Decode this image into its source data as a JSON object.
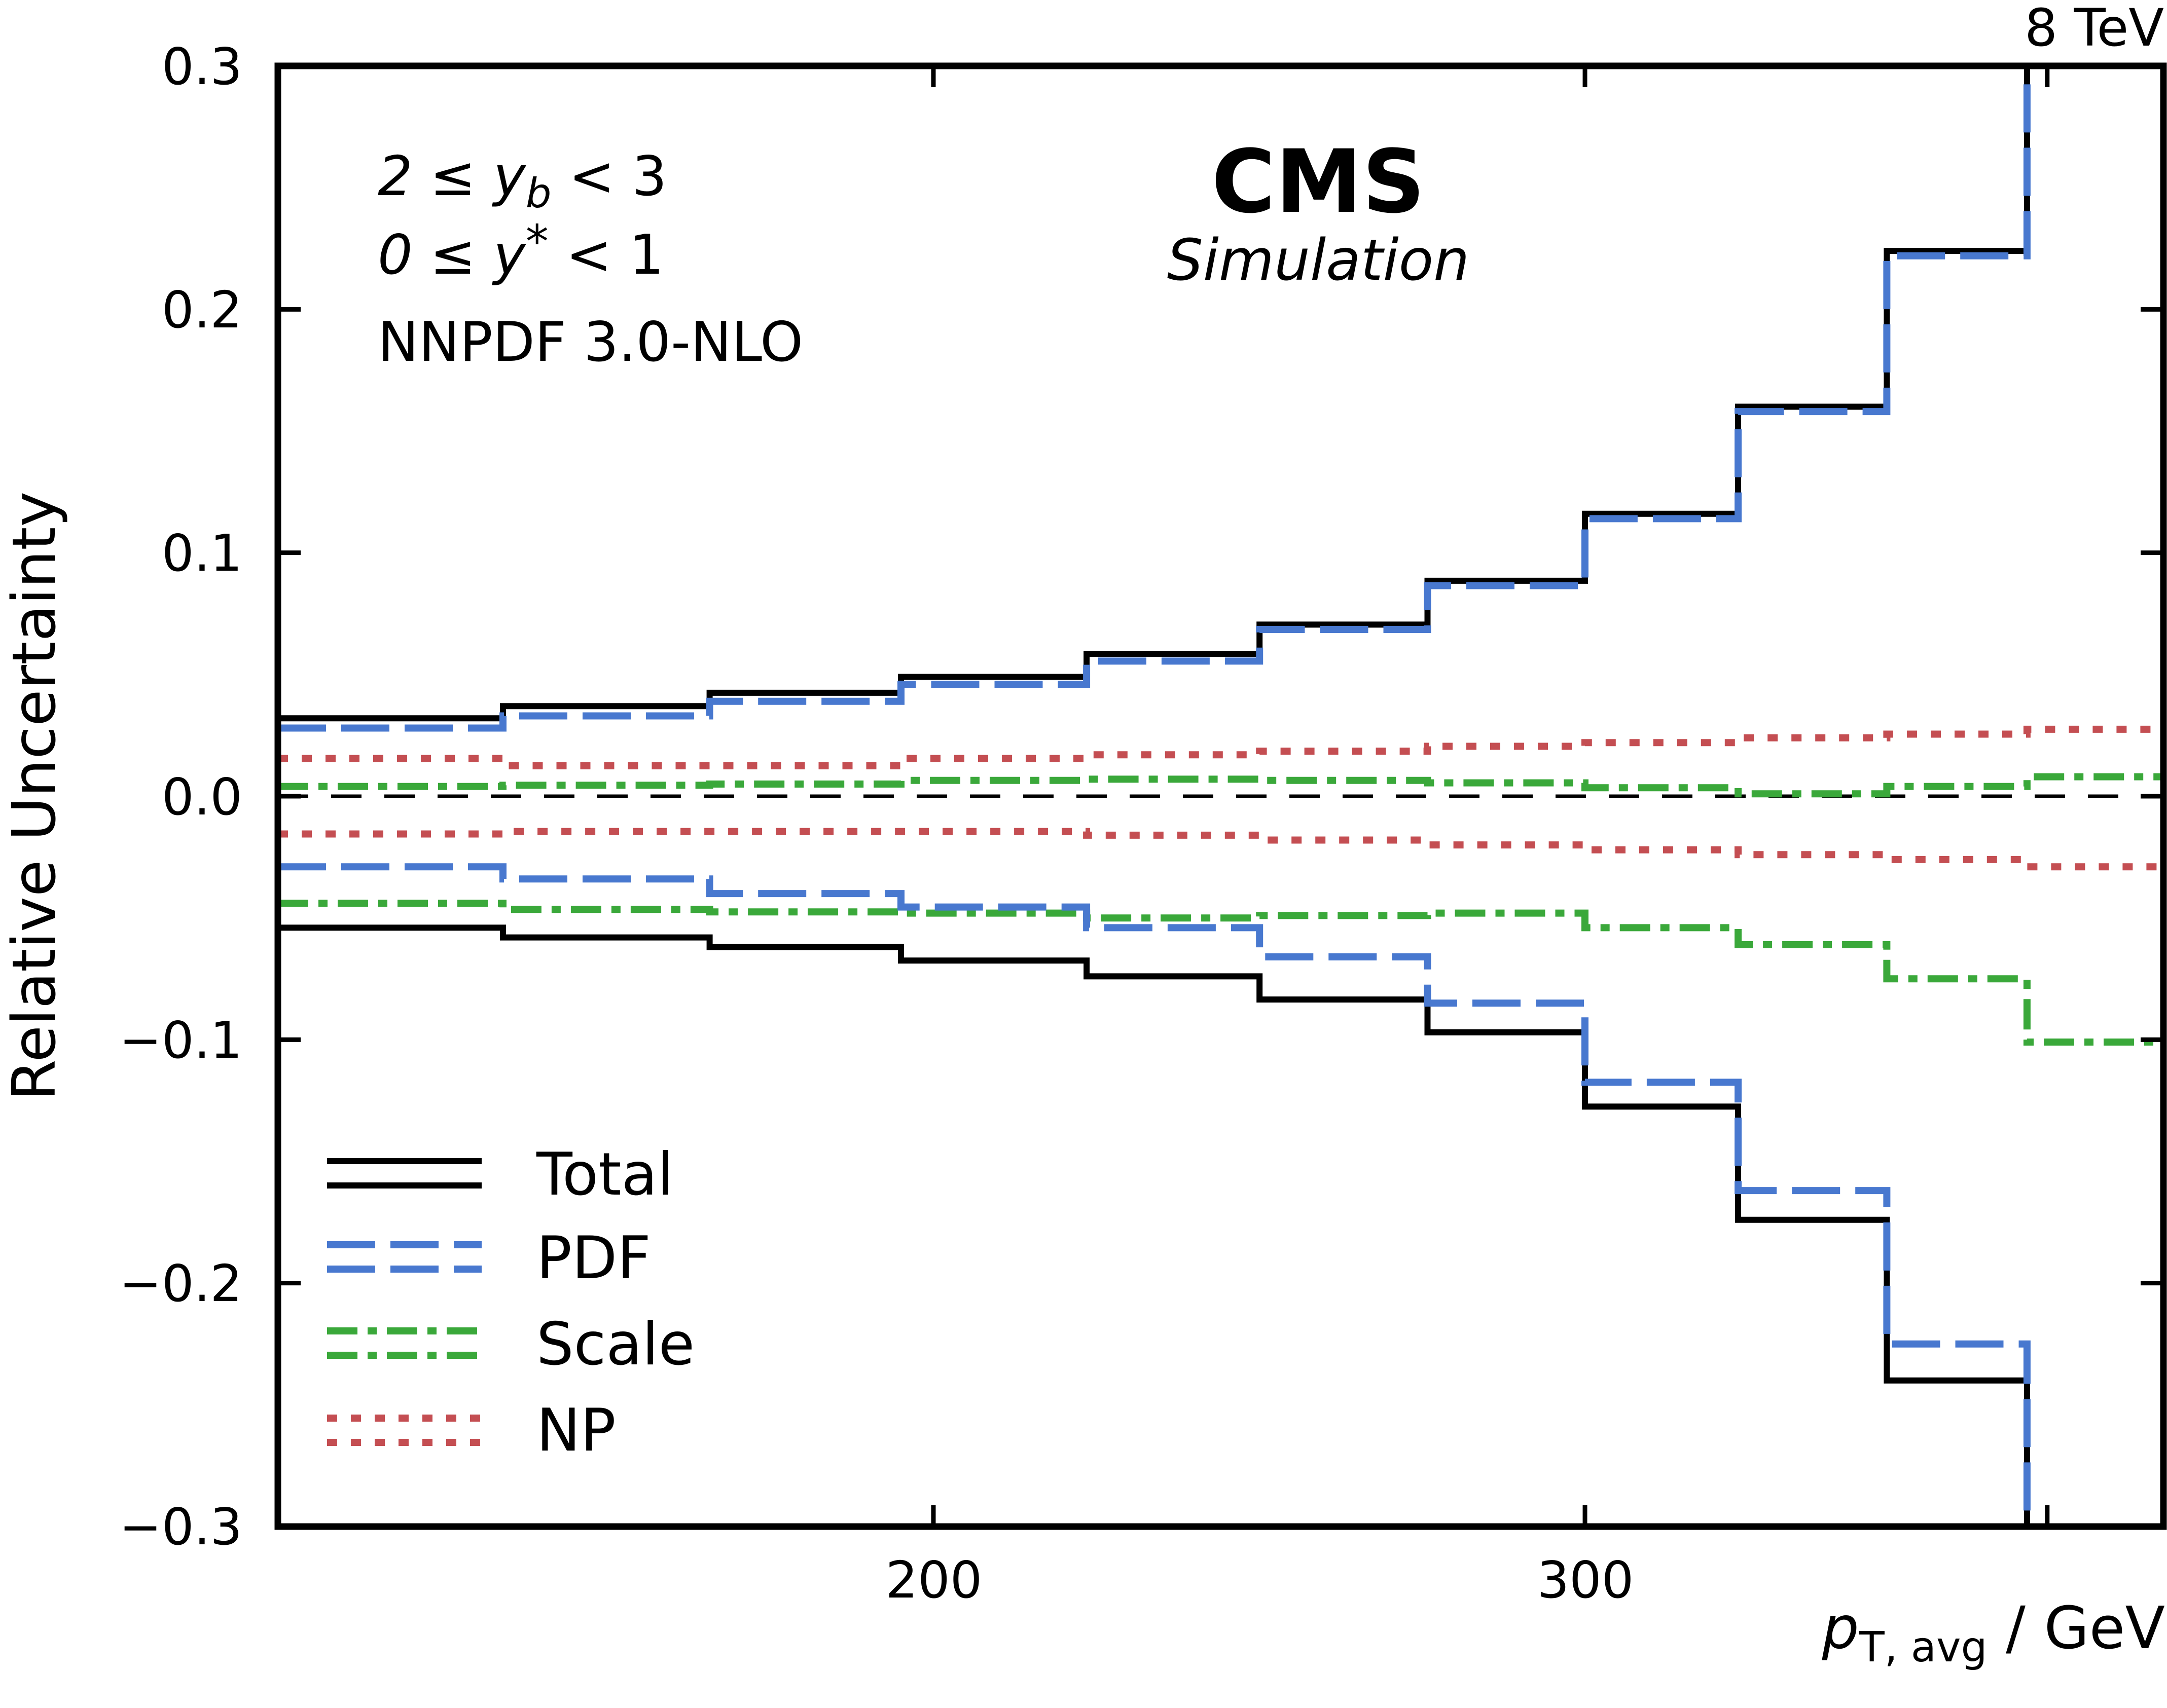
{
  "header": {
    "energy_label": "8 TeV"
  },
  "experiment": {
    "name": "CMS",
    "subtitle": "Simulation"
  },
  "annotations": {
    "yb": {
      "pre": "2 ≤ y",
      "sub": "b",
      "post": " < 3"
    },
    "ystar": {
      "pre": "0 ≤ y",
      "sup": "*",
      "post": " < 1"
    },
    "pdf_set": "NNPDF 3.0-NLO"
  },
  "axis_titles": {
    "y": "Relative Uncertainty",
    "x_symbol": "p",
    "x_subscript": "T, avg",
    "x_rest": " / GeV"
  },
  "legend": {
    "entries": [
      {
        "label": "Total",
        "series": "Total"
      },
      {
        "label": "PDF",
        "series": "PDF"
      },
      {
        "label": "Scale",
        "series": "Scale"
      },
      {
        "label": "NP",
        "series": "NP"
      }
    ]
  },
  "chart_data": {
    "type": "line",
    "subtype": "step-uncertainty-bands",
    "xscale": "log",
    "xlim": [
      133,
      430
    ],
    "ylim": [
      -0.3,
      0.3
    ],
    "grid": false,
    "zero_line": 0.0,
    "bin_edges": [
      133,
      153,
      174,
      196,
      220,
      245,
      272,
      300,
      330,
      362,
      395,
      430
    ],
    "xticks": [
      200,
      300
    ],
    "xticks_minor": [
      400
    ],
    "xtick_labels": [
      "200",
      "300"
    ],
    "yticks": [
      0.3,
      0.2,
      0.1,
      0.0,
      -0.1,
      -0.2,
      -0.3
    ],
    "ytick_labels": [
      "0.3",
      "0.2",
      "0.1",
      "0.0",
      "−0.1",
      "−0.2",
      "−0.3"
    ],
    "series": [
      {
        "name": "Total",
        "color": "#000000",
        "style": "solid",
        "width": 12,
        "upper": [
          0.032,
          0.037,
          0.0425,
          0.049,
          0.0585,
          0.0705,
          0.0885,
          0.116,
          0.16,
          0.224,
          0.34
        ],
        "lower": [
          -0.054,
          -0.058,
          -0.062,
          -0.0675,
          -0.074,
          -0.0835,
          -0.097,
          -0.1275,
          -0.174,
          -0.24,
          -0.34
        ]
      },
      {
        "name": "NP",
        "color": "#c44e52",
        "style": "dotted",
        "width": 14,
        "upper": [
          0.0155,
          0.0125,
          0.0125,
          0.0155,
          0.017,
          0.0185,
          0.0205,
          0.022,
          0.024,
          0.0255,
          0.0275
        ],
        "lower": [
          -0.0155,
          -0.0145,
          -0.0145,
          -0.0145,
          -0.016,
          -0.018,
          -0.02,
          -0.022,
          -0.024,
          -0.026,
          -0.029
        ]
      },
      {
        "name": "Scale",
        "color": "#3aa83a",
        "style": "dashdot",
        "width": 14,
        "upper": [
          0.004,
          0.0045,
          0.005,
          0.0065,
          0.007,
          0.0065,
          0.0055,
          0.0035,
          0.001,
          0.004,
          0.008
        ],
        "lower": [
          -0.044,
          -0.0465,
          -0.0475,
          -0.048,
          -0.05,
          -0.049,
          -0.048,
          -0.054,
          -0.061,
          -0.075,
          -0.101
        ]
      },
      {
        "name": "PDF",
        "color": "#4878cf",
        "style": "dashed",
        "width": 14,
        "upper": [
          0.028,
          0.033,
          0.039,
          0.046,
          0.0555,
          0.0685,
          0.0865,
          0.114,
          0.158,
          0.222,
          0.34
        ],
        "lower": [
          -0.029,
          -0.034,
          -0.04,
          -0.0455,
          -0.054,
          -0.066,
          -0.085,
          -0.1175,
          -0.162,
          -0.225,
          -0.34
        ]
      }
    ]
  }
}
